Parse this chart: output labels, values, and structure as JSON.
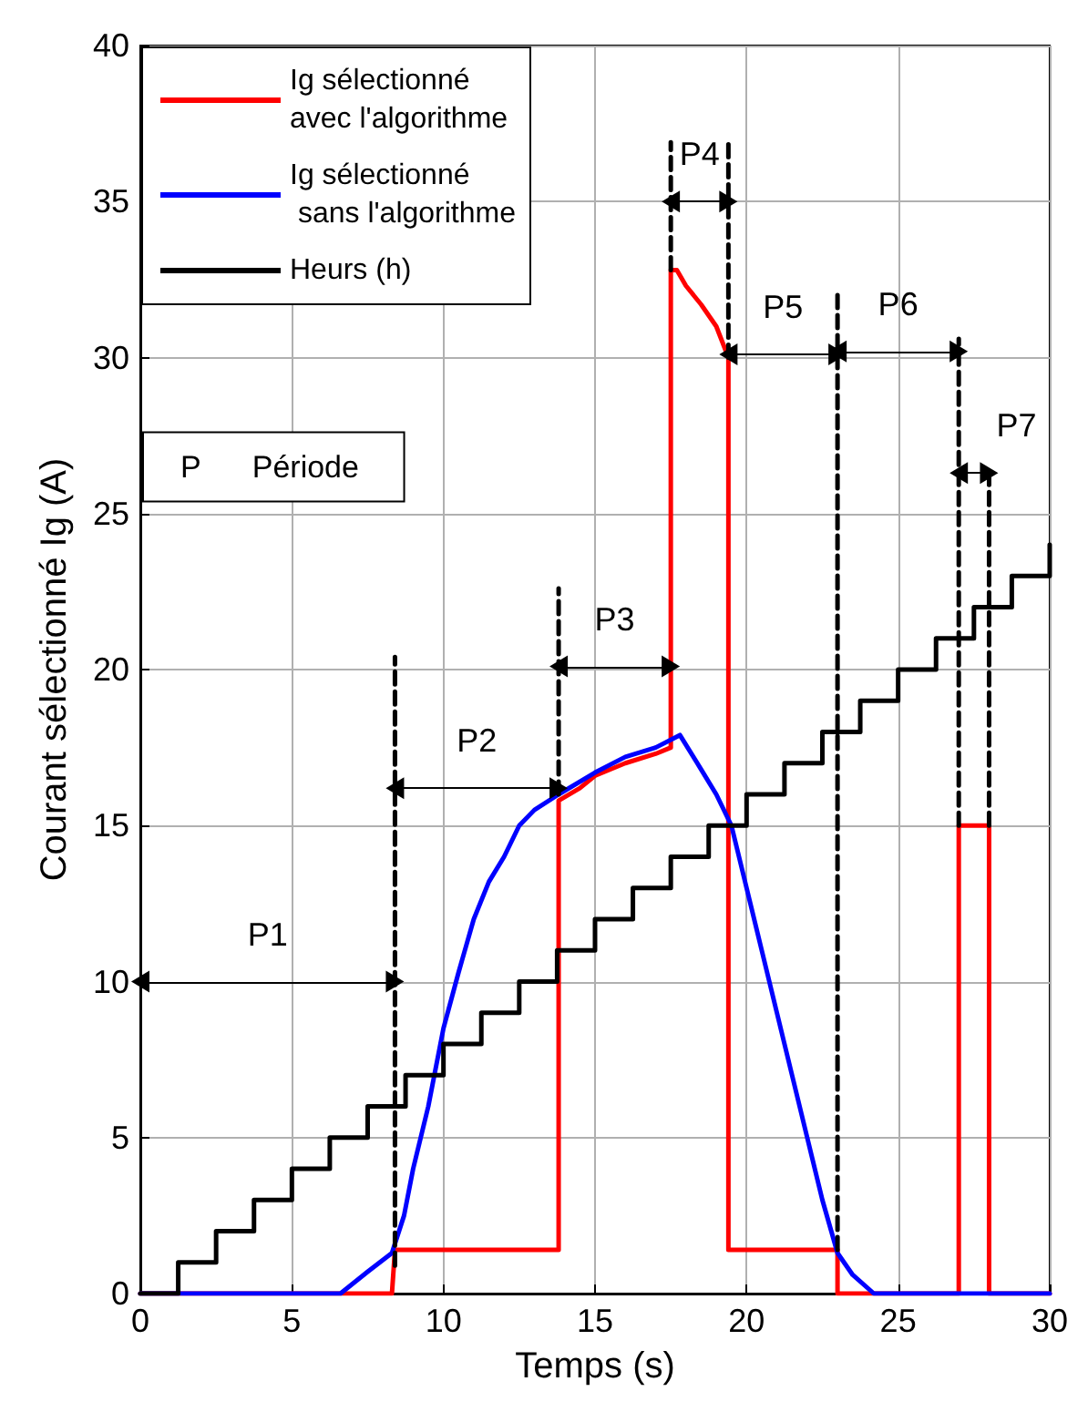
{
  "chart_data": {
    "type": "line",
    "xlabel": "Temps (s)",
    "ylabel": "Courant sélectionné Ig (A)",
    "xlim": [
      0,
      30
    ],
    "xticks": [
      0,
      5,
      10,
      15,
      20,
      25,
      30
    ],
    "ylim": [
      0,
      40
    ],
    "yticks": [
      0,
      5,
      10,
      15,
      20,
      25,
      30,
      35,
      40
    ],
    "grid": true,
    "legend": "top left",
    "series": [
      {
        "name": "Ig sélectionné\navec l'algorithme",
        "color": "#ff0000",
        "x": [
          0,
          8.3,
          8.4,
          13.8,
          13.8,
          14.5,
          15,
          16,
          17,
          17.5,
          17.5,
          17.7,
          18,
          18.5,
          19,
          19.4,
          19.4,
          23,
          23,
          27,
          27,
          28,
          28,
          30
        ],
        "values": [
          0,
          0,
          1.4,
          1.4,
          15.8,
          16.2,
          16.6,
          17,
          17.3,
          17.5,
          32.8,
          32.8,
          32.3,
          31.7,
          31,
          30,
          1.4,
          1.4,
          0,
          0,
          15,
          15,
          0,
          0
        ]
      },
      {
        "name": "Ig sélectionné\n sans l'algorithme",
        "color": "#0000ff",
        "x": [
          0,
          6.6,
          7.5,
          8.3,
          8.7,
          9,
          9.5,
          10,
          10.5,
          11,
          11.5,
          12,
          12.5,
          13,
          13.8,
          15,
          16,
          17,
          17.8,
          18.5,
          19,
          19.5,
          20,
          20.5,
          21,
          21.5,
          22,
          22.5,
          23,
          23.5,
          24.2,
          30
        ],
        "values": [
          0,
          0,
          0.7,
          1.3,
          2.5,
          4,
          6,
          8.5,
          10.3,
          12,
          13.2,
          14,
          15,
          15.5,
          16,
          16.7,
          17.2,
          17.5,
          17.9,
          16.8,
          16,
          15,
          13,
          11,
          9,
          7,
          5,
          3,
          1.3,
          0.6,
          0,
          0
        ]
      },
      {
        "name": "Heurs (h)",
        "type": "step",
        "color": "#000000",
        "x": [
          0,
          1.25,
          2.5,
          3.75,
          5,
          6.25,
          7.5,
          8.75,
          10,
          11.25,
          12.5,
          13.75,
          15,
          16.25,
          17.5,
          18.75,
          20,
          21.25,
          22.5,
          23.75,
          25,
          26.25,
          27.5,
          28.75,
          30
        ],
        "values": [
          0,
          1,
          2,
          3,
          4,
          5,
          6,
          7,
          8,
          9,
          10,
          11,
          12,
          13,
          14,
          15,
          16,
          17,
          18,
          19,
          20,
          21,
          22,
          23,
          24
        ]
      },
      {
        "color": "#000000",
        "line_style": "dashed",
        "x": [
          8.4,
          8.4
        ],
        "values": [
          0.9,
          20.4
        ]
      },
      {
        "color": "#000000",
        "line_style": "dashed",
        "x": [
          13.8,
          13.8
        ],
        "values": [
          16,
          22.6
        ]
      },
      {
        "color": "#000000",
        "line_style": "dashed",
        "x": [
          17.5,
          17.5
        ],
        "values": [
          32.8,
          36.9
        ]
      },
      {
        "color": "#000000",
        "line_style": "dashed",
        "x": [
          19.4,
          19.4
        ],
        "values": [
          30,
          36.9
        ]
      },
      {
        "color": "#000000",
        "line_style": "dashed",
        "x": [
          23,
          23
        ],
        "values": [
          1.4,
          32.2
        ]
      },
      {
        "color": "#000000",
        "line_style": "dashed",
        "x": [
          27,
          27
        ],
        "values": [
          15,
          30.6
        ]
      },
      {
        "color": "#000000",
        "line_style": "dashed",
        "x": [
          28,
          28
        ],
        "values": [
          15,
          26.4
        ]
      },
      {
        "color": "#000000",
        "marker": "triangle",
        "x": [
          0,
          8.4
        ],
        "values": [
          10,
          10
        ]
      },
      {
        "color": "#000000",
        "marker": "triangle",
        "x": [
          8.4,
          13.8
        ],
        "values": [
          16.2,
          16.2
        ]
      },
      {
        "color": "#000000",
        "marker": "triangle",
        "x": [
          13.8,
          17.5
        ],
        "values": [
          20.1,
          20.1
        ]
      },
      {
        "color": "#000000",
        "marker": "triangle",
        "x": [
          17.5,
          19.4
        ],
        "values": [
          35,
          35
        ]
      },
      {
        "color": "#000000",
        "marker": "triangle",
        "x": [
          19.4,
          23
        ],
        "values": [
          30.1,
          30.1
        ]
      },
      {
        "color": "#000000",
        "marker": "triangle",
        "x": [
          23,
          27
        ],
        "values": [
          30.2,
          30.2
        ]
      },
      {
        "color": "#000000",
        "marker": "triangle",
        "x": [
          27,
          28
        ],
        "values": [
          26.3,
          26.3
        ]
      }
    ],
    "annotations": [
      "P      Période",
      {
        "text": "P1",
        "x": 4.2,
        "y": 10
      },
      {
        "text": "P2",
        "x": 11.1,
        "y": 16.2
      },
      {
        "text": "P3",
        "x": 15.65,
        "y": 20.1
      },
      {
        "text": "P4",
        "x": 18.45,
        "y": 35
      },
      {
        "text": "P5",
        "x": 21.2,
        "y": 30.1
      },
      {
        "text": "P6",
        "x": 25,
        "y": 30.2
      },
      {
        "text": "P7",
        "x": 27.5,
        "y": 26.3
      }
    ]
  }
}
